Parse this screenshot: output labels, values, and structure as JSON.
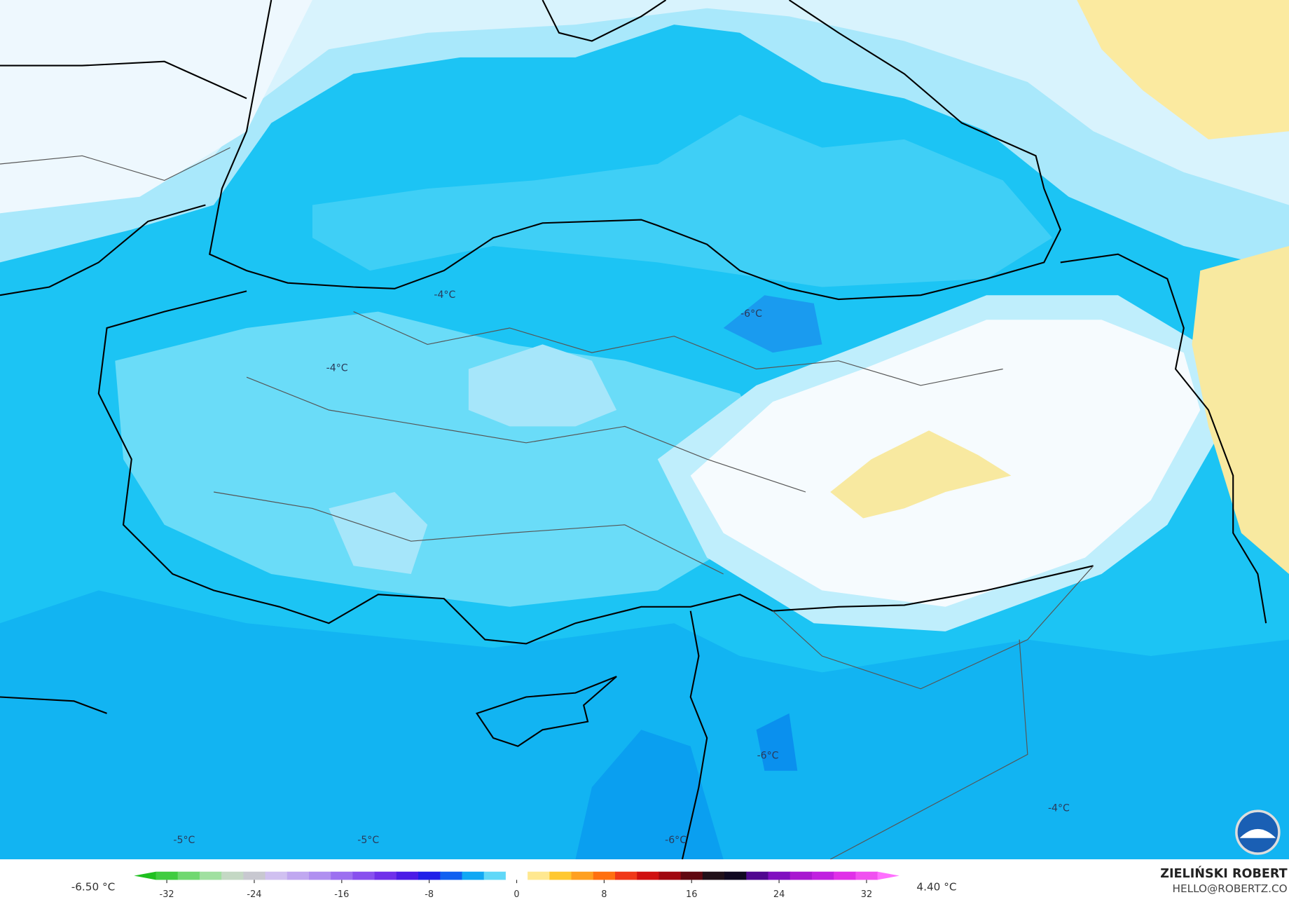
{
  "map": {
    "contour_labels": [
      "-4°C",
      "-6°C",
      "-4°C",
      "-6°C",
      "-6°C",
      "-5°C",
      "-5°C",
      "-4°C"
    ],
    "colorbar": {
      "min_label": "-6.50 °C",
      "max_label": "4.40 °C",
      "lim": [
        -35,
        35
      ],
      "ticks": [
        -32,
        -24,
        -16,
        -8,
        0,
        8,
        16,
        24,
        32
      ],
      "colors": [
        "#20c020",
        "#40cc40",
        "#70d870",
        "#a0e0a0",
        "#c4d8c4",
        "#c8c8d0",
        "#d0c0f0",
        "#c0a8f0",
        "#b090f0",
        "#9c70f0",
        "#8850ee",
        "#7030ea",
        "#4c1ce6",
        "#2020e8",
        "#1060f0",
        "#10a8f4",
        "#60d8f8",
        "#ffffff",
        "#ffe890",
        "#ffc830",
        "#ffa020",
        "#ff7010",
        "#f03818",
        "#d01010",
        "#a00810",
        "#600810",
        "#201018",
        "#100820",
        "#500890",
        "#8010c0",
        "#a818d0",
        "#c020e0",
        "#e030e8",
        "#f050f0",
        "#ff70ff"
      ]
    },
    "author": "ZIELIŃSKI ROBERT",
    "email": "HELLO@ROBERTZ.CO"
  }
}
